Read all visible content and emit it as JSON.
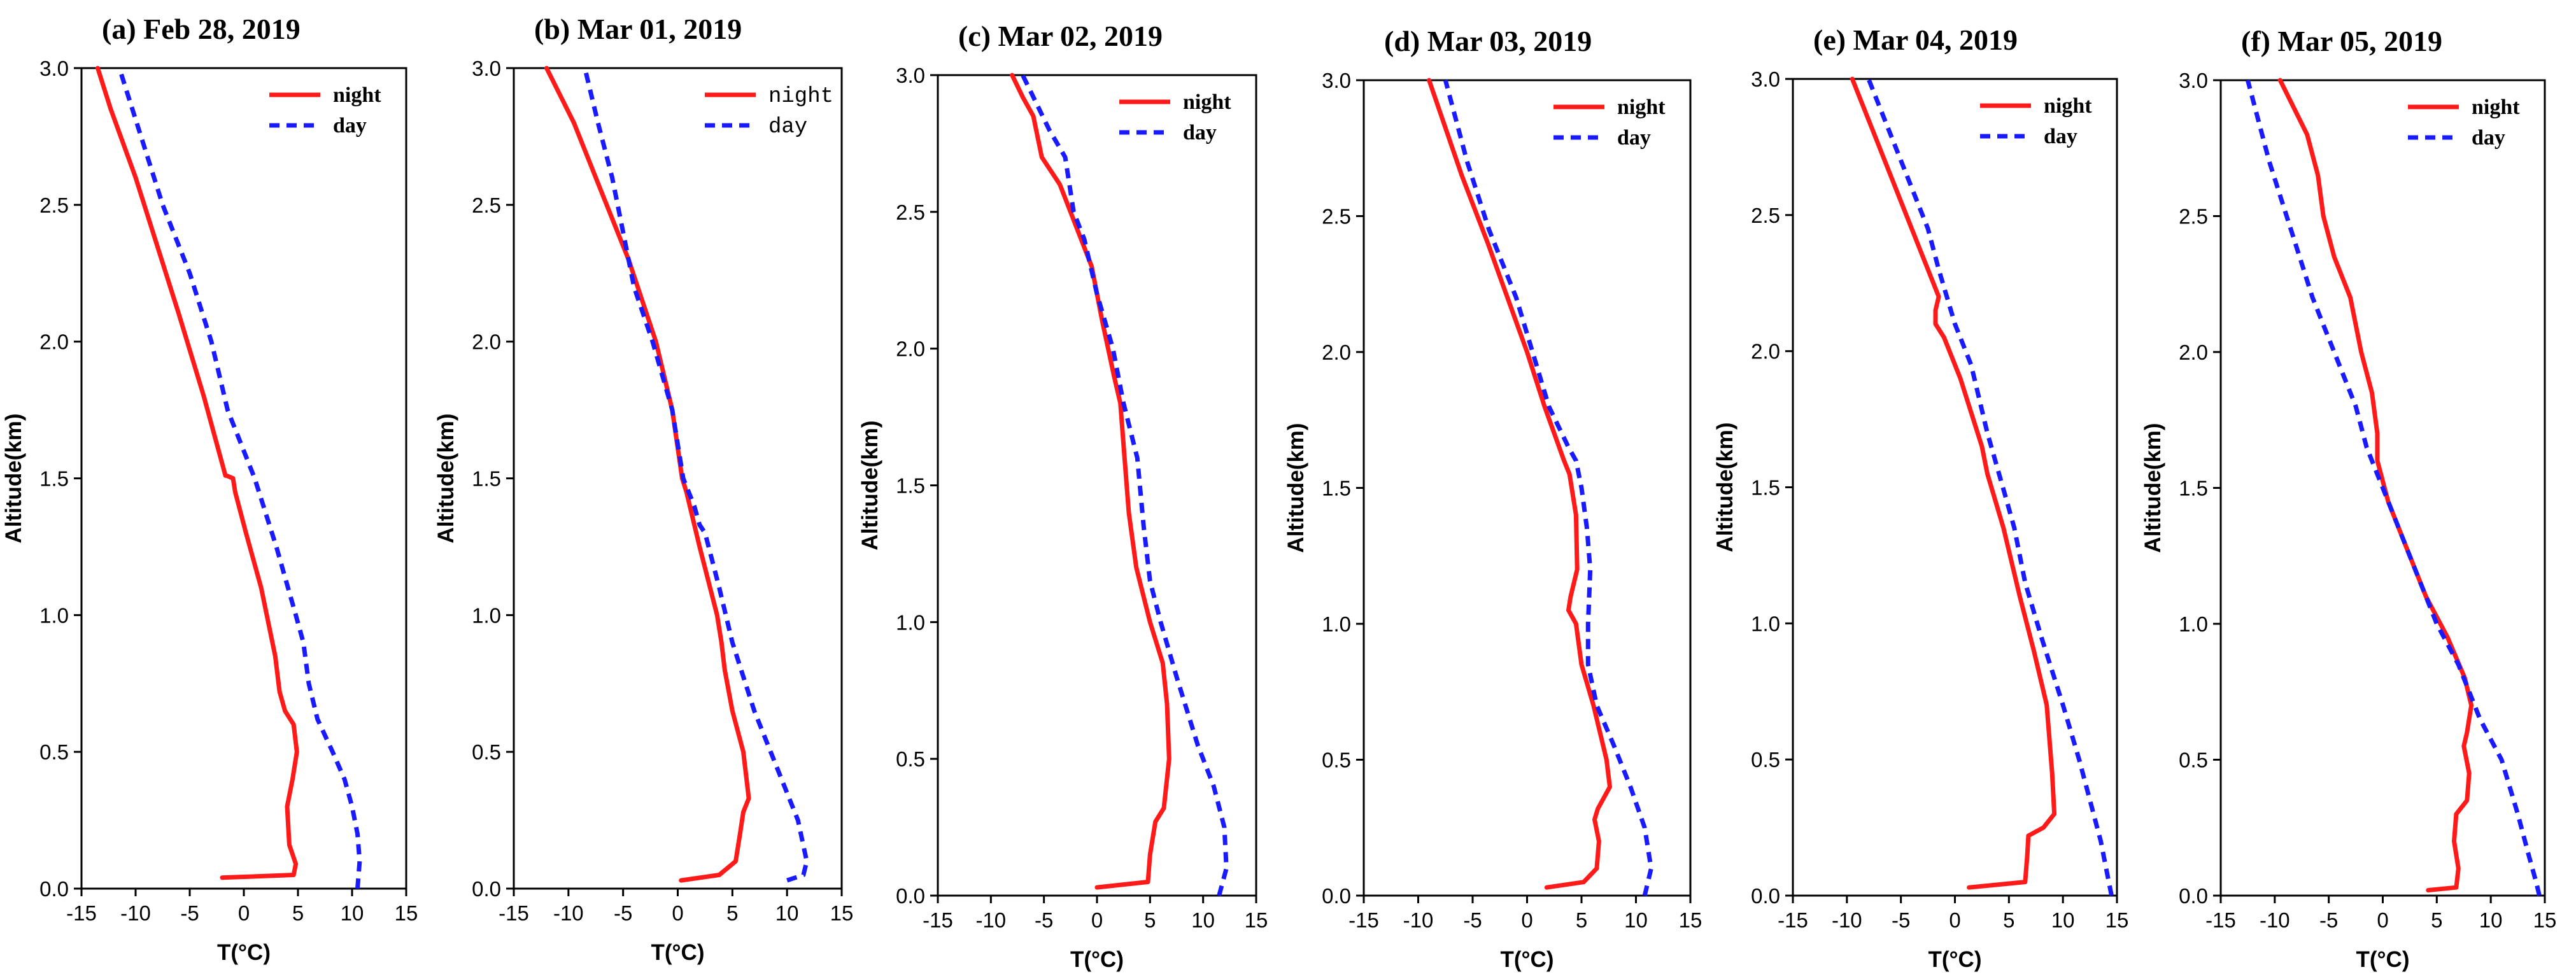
{
  "colors": {
    "night": "#ff1a1a",
    "day": "#1a1aff",
    "axis": "#000000"
  },
  "chart_data": [
    {
      "type": "line",
      "panel_label": "(a)",
      "title": "Feb 28, 2019",
      "xlabel": "T(°C)",
      "ylabel": "Altitude(km)",
      "xlim": [
        -15,
        15
      ],
      "ylim": [
        0,
        3
      ],
      "x_ticks": [
        "-15",
        "-10",
        "-5",
        "0",
        "5",
        "10",
        "15"
      ],
      "y_ticks": [
        "0.0",
        "0.5",
        "1.0",
        "1.5",
        "2.0",
        "2.5",
        "3.0"
      ],
      "legend": {
        "position": "top-right",
        "font": "serif-bold"
      },
      "series": [
        {
          "name": "night",
          "style": "solid",
          "x": [
            -2,
            4.6,
            4.8,
            4.2,
            4.0,
            4.5,
            4.9,
            4.6,
            3.8,
            3.3,
            2.9,
            1.6,
            0.2,
            -0.8,
            -1.0,
            -1.6,
            -1.7,
            -3.7,
            -6.0,
            -7.6,
            -10.0,
            -12.3,
            -12.7,
            -13.5
          ],
          "y": [
            0.04,
            0.05,
            0.09,
            0.16,
            0.3,
            0.4,
            0.5,
            0.6,
            0.65,
            0.72,
            0.85,
            1.1,
            1.3,
            1.45,
            1.5,
            1.51,
            1.51,
            1.8,
            2.1,
            2.3,
            2.6,
            2.85,
            2.9,
            3.0
          ]
        },
        {
          "name": "day",
          "style": "dashed",
          "x": [
            10.5,
            10.7,
            10.5,
            10.0,
            9.3,
            8.2,
            6.8,
            6.0,
            5.5,
            4.8,
            3.0,
            1.0,
            -1.5,
            -3.0,
            -5.0,
            -7.5,
            -9.5,
            -11.5
          ],
          "y": [
            0.0,
            0.1,
            0.2,
            0.3,
            0.4,
            0.5,
            0.62,
            0.75,
            0.9,
            1.0,
            1.25,
            1.5,
            1.75,
            2.0,
            2.25,
            2.5,
            2.75,
            3.0
          ]
        }
      ]
    },
    {
      "type": "line",
      "panel_label": "(b)",
      "title": "Mar 01, 2019",
      "xlabel": "T(°C)",
      "ylabel": "Altitude(km)",
      "xlim": [
        -15,
        15
      ],
      "ylim": [
        0,
        3
      ],
      "x_ticks": [
        "-15",
        "-10",
        "-5",
        "0",
        "5",
        "10",
        "15"
      ],
      "y_ticks": [
        "0.0",
        "0.5",
        "1.0",
        "1.5",
        "2.0",
        "2.5",
        "3.0"
      ],
      "legend": {
        "position": "top-right",
        "font": "mono"
      },
      "series": [
        {
          "name": "night",
          "style": "solid",
          "x": [
            0.3,
            3.8,
            5.3,
            5.7,
            6.0,
            6.5,
            6.0,
            5.0,
            4.3,
            4.0,
            3.6,
            2.0,
            0.8,
            0.4,
            -0.5,
            -2.0,
            -4.5,
            -7.0,
            -9.5,
            -12.0
          ],
          "y": [
            0.03,
            0.05,
            0.1,
            0.2,
            0.28,
            0.33,
            0.5,
            0.65,
            0.8,
            0.9,
            1.0,
            1.25,
            1.45,
            1.5,
            1.75,
            2.0,
            2.3,
            2.55,
            2.8,
            3.0
          ]
        },
        {
          "name": "day",
          "style": "dashed",
          "x": [
            10.0,
            11.5,
            11.8,
            11.0,
            9.5,
            7.0,
            5.0,
            3.8,
            2.5,
            2.0,
            1.5,
            0.5,
            -0.5,
            -2.3,
            -4.0,
            -5.0,
            -6.0,
            -7.3,
            -8.5
          ],
          "y": [
            0.03,
            0.05,
            0.1,
            0.25,
            0.4,
            0.65,
            0.9,
            1.1,
            1.3,
            1.33,
            1.4,
            1.5,
            1.75,
            2.0,
            2.2,
            2.4,
            2.6,
            2.8,
            3.0
          ]
        }
      ]
    },
    {
      "type": "line",
      "panel_label": "(c)",
      "title": "Mar 02, 2019",
      "xlabel": "T(°C)",
      "ylabel": "Altitude(km)",
      "xlim": [
        -15,
        15
      ],
      "ylim": [
        0,
        3
      ],
      "x_ticks": [
        "-15",
        "-10",
        "-5",
        "0",
        "5",
        "10",
        "15"
      ],
      "y_ticks": [
        "0.0",
        "0.5",
        "1.0",
        "1.5",
        "2.0",
        "2.5",
        "3.0"
      ],
      "legend": {
        "position": "top-right",
        "font": "serif-bold"
      },
      "series": [
        {
          "name": "night",
          "style": "solid",
          "x": [
            0.0,
            4.8,
            5.0,
            5.5,
            6.3,
            6.8,
            6.6,
            6.2,
            5.0,
            3.7,
            3.0,
            2.6,
            2.2,
            1.6,
            0.5,
            -0.5,
            -2.0,
            -3.5,
            -5.2,
            -6.0,
            -7.0,
            -8.0
          ],
          "y": [
            0.03,
            0.05,
            0.15,
            0.27,
            0.32,
            0.5,
            0.7,
            0.85,
            1.0,
            1.2,
            1.4,
            1.6,
            1.8,
            1.9,
            2.1,
            2.3,
            2.45,
            2.6,
            2.7,
            2.85,
            2.92,
            3.0
          ]
        },
        {
          "name": "day",
          "style": "dashed",
          "x": [
            11.5,
            12.2,
            12.0,
            11.0,
            9.5,
            7.5,
            6.0,
            5.0,
            4.4,
            3.8,
            2.5,
            1.5,
            0.0,
            -1.2,
            -2.2,
            -2.6,
            -3.0,
            -4.5,
            -6.0,
            -7.0
          ],
          "y": [
            0.0,
            0.1,
            0.25,
            0.4,
            0.55,
            0.8,
            1.0,
            1.15,
            1.35,
            1.6,
            1.8,
            2.0,
            2.2,
            2.4,
            2.5,
            2.6,
            2.7,
            2.8,
            2.92,
            3.0
          ]
        }
      ]
    },
    {
      "type": "line",
      "panel_label": "(d)",
      "title": "Mar 03, 2019",
      "xlabel": "T(°C)",
      "ylabel": "Altitude(km)",
      "xlim": [
        -15,
        15
      ],
      "ylim": [
        0,
        3
      ],
      "x_ticks": [
        "-15",
        "-10",
        "-5",
        "0",
        "5",
        "10",
        "15"
      ],
      "y_ticks": [
        "0.0",
        "0.5",
        "1.0",
        "1.5",
        "2.0",
        "2.5",
        "3.0"
      ],
      "legend": {
        "position": "top-right",
        "font": "serif-bold"
      },
      "series": [
        {
          "name": "night",
          "style": "solid",
          "x": [
            1.8,
            5.2,
            6.4,
            6.6,
            6.2,
            6.5,
            7.6,
            7.3,
            6.1,
            5.0,
            4.5,
            3.8,
            4.0,
            4.6,
            4.5,
            3.9,
            3.4,
            1.6,
            0.0,
            -1.8,
            -3.6,
            -6.0,
            -9.0
          ],
          "y": [
            0.03,
            0.05,
            0.1,
            0.2,
            0.28,
            0.32,
            0.4,
            0.5,
            0.7,
            0.85,
            1.0,
            1.05,
            1.1,
            1.2,
            1.4,
            1.55,
            1.6,
            1.8,
            2.0,
            2.2,
            2.4,
            2.65,
            3.0
          ]
        },
        {
          "name": "day",
          "style": "dashed",
          "x": [
            10.8,
            11.4,
            10.8,
            9.5,
            8.0,
            6.4,
            5.6,
            5.6,
            5.8,
            5.5,
            5.0,
            4.5,
            3.8,
            2.0,
            0.5,
            -1.0,
            -3.5,
            -5.5,
            -7.5
          ],
          "y": [
            0.0,
            0.1,
            0.25,
            0.4,
            0.55,
            0.7,
            0.85,
            1.0,
            1.2,
            1.35,
            1.5,
            1.6,
            1.65,
            1.8,
            2.0,
            2.2,
            2.45,
            2.7,
            3.0
          ]
        }
      ]
    },
    {
      "type": "line",
      "panel_label": "(e)",
      "title": "Mar 04, 2019",
      "xlabel": "T(°C)",
      "ylabel": "Altitude(km)",
      "xlim": [
        -15,
        15
      ],
      "ylim": [
        0,
        3
      ],
      "x_ticks": [
        "-15",
        "-10",
        "-5",
        "0",
        "5",
        "10",
        "15"
      ],
      "y_ticks": [
        "0.0",
        "0.5",
        "1.0",
        "1.5",
        "2.0",
        "2.5",
        "3.0"
      ],
      "legend": {
        "position": "top-right",
        "font": "serif-bold"
      },
      "series": [
        {
          "name": "night",
          "style": "solid",
          "x": [
            1.3,
            6.5,
            6.7,
            6.8,
            8.2,
            9.2,
            9.0,
            8.8,
            8.5,
            7.3,
            6.0,
            4.8,
            4.5,
            3.0,
            2.5,
            0.5,
            -1.0,
            -1.8,
            -1.8,
            -1.5,
            -3.5,
            -5.5,
            -7.5,
            -9.5
          ],
          "y": [
            0.03,
            0.05,
            0.15,
            0.22,
            0.25,
            0.3,
            0.45,
            0.55,
            0.7,
            0.9,
            1.1,
            1.3,
            1.35,
            1.55,
            1.65,
            1.9,
            2.05,
            2.1,
            2.15,
            2.2,
            2.4,
            2.6,
            2.8,
            3.0
          ]
        },
        {
          "name": "day",
          "style": "dashed",
          "x": [
            14.5,
            14.0,
            13.5,
            12.5,
            11.5,
            10.0,
            8.0,
            6.5,
            5.5,
            4.8,
            3.0,
            1.5,
            0.0,
            -1.5,
            -2.5,
            -4.5,
            -6.5,
            -8.0
          ],
          "y": [
            0.0,
            0.1,
            0.2,
            0.35,
            0.5,
            0.7,
            0.95,
            1.15,
            1.35,
            1.45,
            1.7,
            1.95,
            2.1,
            2.3,
            2.45,
            2.65,
            2.85,
            3.0
          ]
        }
      ]
    },
    {
      "type": "line",
      "panel_label": "(f)",
      "title": "Mar 05, 2019",
      "xlabel": "T(°C)",
      "ylabel": "Altitude(km)",
      "xlim": [
        -15,
        15
      ],
      "ylim": [
        0,
        3
      ],
      "x_ticks": [
        "-15",
        "-10",
        "-5",
        "0",
        "5",
        "10",
        "15"
      ],
      "y_ticks": [
        "0.0",
        "0.5",
        "1.0",
        "1.5",
        "2.0",
        "2.5",
        "3.0"
      ],
      "legend": {
        "position": "top-right",
        "font": "serif-bold"
      },
      "series": [
        {
          "name": "night",
          "style": "solid",
          "x": [
            4.2,
            6.8,
            7.0,
            6.6,
            6.8,
            7.8,
            8.0,
            7.5,
            7.8,
            8.2,
            7.6,
            6.0,
            4.0,
            2.0,
            0.5,
            -0.5,
            -0.5,
            -1.0,
            -2.0,
            -3.0,
            -4.5,
            -5.5,
            -6.0,
            -7.0,
            -9.5
          ],
          "y": [
            0.02,
            0.03,
            0.1,
            0.2,
            0.3,
            0.35,
            0.45,
            0.55,
            0.6,
            0.7,
            0.8,
            0.95,
            1.1,
            1.3,
            1.45,
            1.6,
            1.7,
            1.85,
            2.0,
            2.2,
            2.35,
            2.5,
            2.65,
            2.8,
            3.0
          ]
        },
        {
          "name": "day",
          "style": "dashed",
          "x": [
            14.5,
            14.2,
            13.5,
            12.5,
            11.0,
            9.0,
            7.0,
            5.0,
            2.5,
            1.0,
            -0.5,
            -1.5,
            -2.5,
            -4.5,
            -6.5,
            -8.5,
            -10.5,
            -12.5
          ],
          "y": [
            0.0,
            0.05,
            0.15,
            0.3,
            0.5,
            0.65,
            0.85,
            1.0,
            1.25,
            1.4,
            1.55,
            1.65,
            1.8,
            2.0,
            2.2,
            2.45,
            2.7,
            3.0
          ]
        }
      ]
    }
  ]
}
